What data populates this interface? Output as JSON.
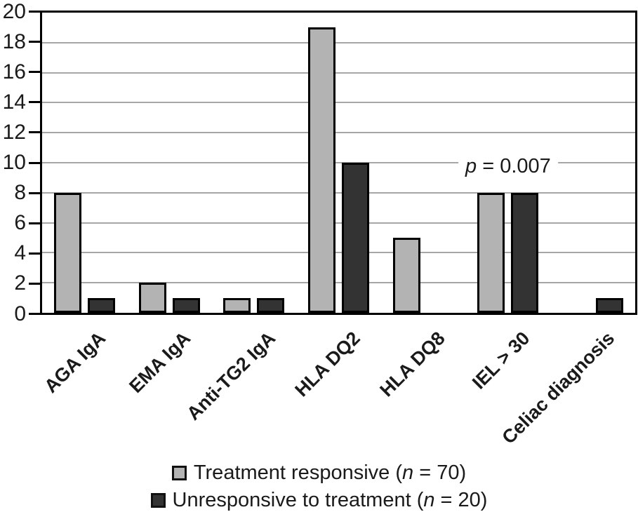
{
  "chart_data": {
    "type": "bar",
    "title": "",
    "xlabel": "",
    "ylabel": "",
    "categories": [
      "AGA IgA",
      "EMA IgA",
      "Anti-TG2 IgA",
      "HLA DQ2",
      "HLA DQ8",
      "IEL > 30",
      "Celiac diagnosis"
    ],
    "series": [
      {
        "name": "Treatment responsive (n = 70)",
        "values": [
          8,
          2,
          1,
          19,
          5,
          8,
          0
        ],
        "color": "#b3b3b3"
      },
      {
        "name": "Unresponsive to treatment (n = 20)",
        "values": [
          1,
          1,
          1,
          10,
          0,
          8,
          1
        ],
        "color": "#333333"
      }
    ],
    "ylim": [
      0,
      20
    ],
    "ytick_step": 2,
    "yticks": [
      "0",
      "2",
      "4",
      "6",
      "8",
      "10",
      "12",
      "14",
      "16",
      "18",
      "20"
    ],
    "grid": true,
    "gridline_color": "#a6a6a6",
    "bar_border_color": "#000000",
    "legend_position": "bottom-center",
    "annotation": {
      "category": "IEL > 30",
      "italic": "p",
      "rest": " = 0.007"
    }
  },
  "legend": {
    "items": [
      {
        "prefix": "Treatment responsive (",
        "italic": "n",
        "suffix": " = 70)",
        "color": "#b3b3b3"
      },
      {
        "prefix": "Unresponsive to treatment (",
        "italic": "n",
        "suffix": " = 20)",
        "color": "#333333"
      }
    ]
  }
}
